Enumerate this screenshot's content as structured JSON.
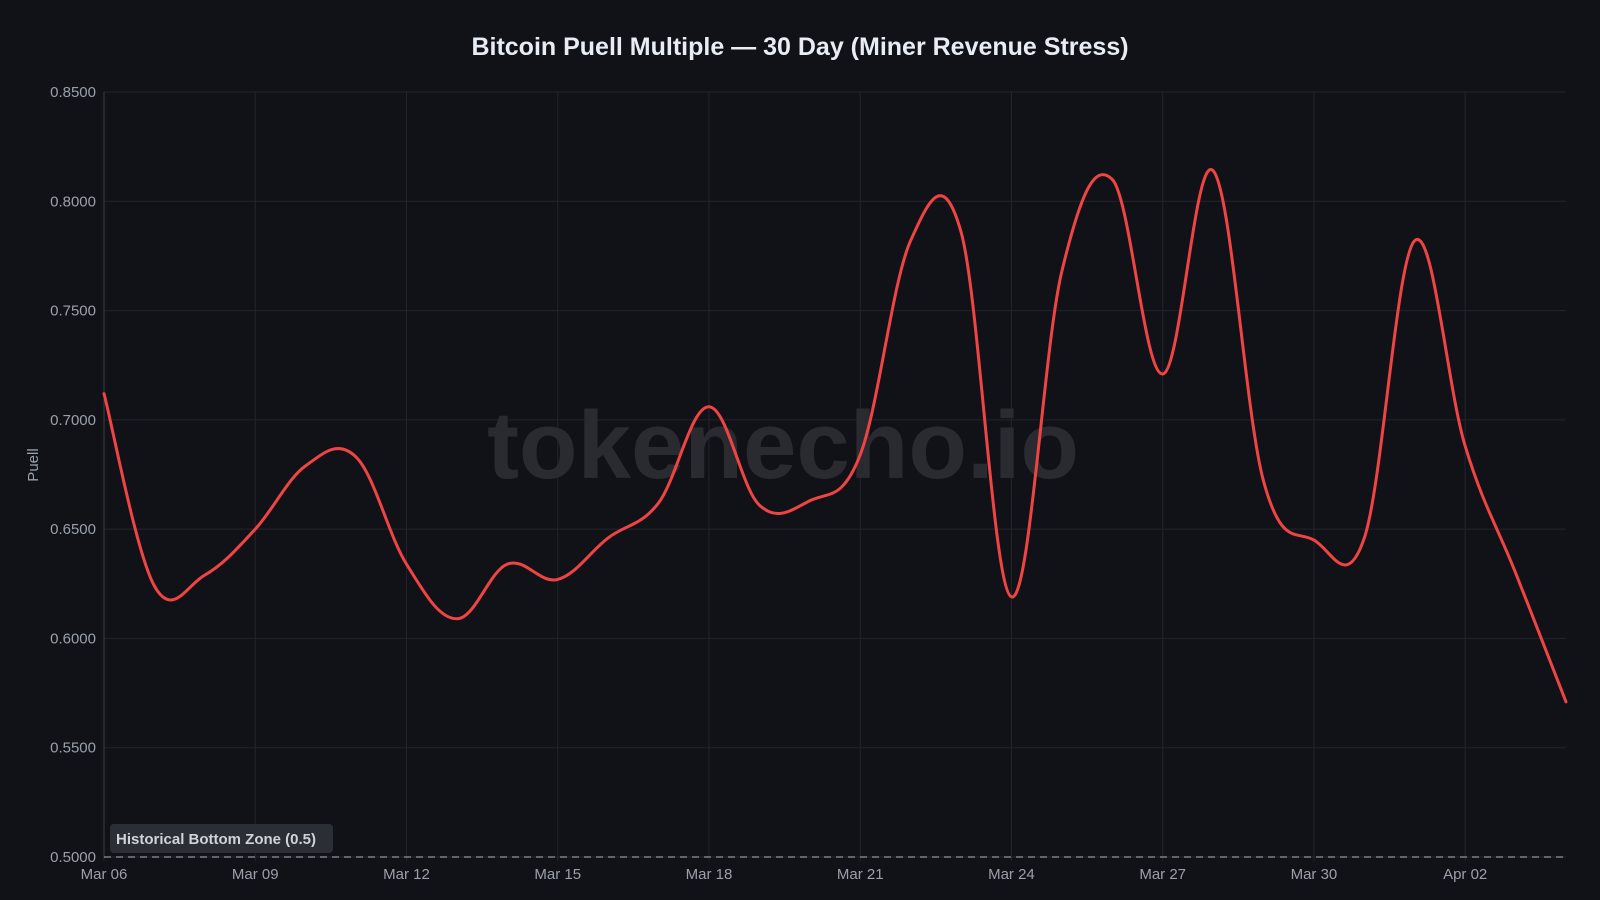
{
  "chart_data": {
    "type": "line",
    "title": "Bitcoin Puell Multiple — 30 Day (Miner Revenue Stress)",
    "xlabel": "",
    "ylabel": "Puell",
    "ylim": [
      0.5,
      0.85
    ],
    "yticks": [
      "0.5000",
      "0.5500",
      "0.6000",
      "0.6500",
      "0.7000",
      "0.7500",
      "0.8000",
      "0.8500"
    ],
    "xtick_labels": [
      "Mar 06",
      "Mar 09",
      "Mar 12",
      "Mar 15",
      "Mar 18",
      "Mar 21",
      "Mar 24",
      "Mar 27",
      "Mar 30",
      "Apr 02"
    ],
    "grid": true,
    "legend": null,
    "x": [
      "Mar 06",
      "Mar 07",
      "Mar 08",
      "Mar 09",
      "Mar 10",
      "Mar 11",
      "Mar 12",
      "Mar 13",
      "Mar 14",
      "Mar 15",
      "Mar 16",
      "Mar 17",
      "Mar 18",
      "Mar 19",
      "Mar 20",
      "Mar 21",
      "Mar 22",
      "Mar 23",
      "Mar 24",
      "Mar 25",
      "Mar 26",
      "Mar 27",
      "Mar 28",
      "Mar 29",
      "Mar 30",
      "Mar 31",
      "Apr 01",
      "Apr 02",
      "Apr 03",
      "Apr 04"
    ],
    "series": [
      {
        "name": "Puell Multiple",
        "color": "#ef4444",
        "values": [
          0.712,
          0.624,
          0.629,
          0.65,
          0.679,
          0.683,
          0.634,
          0.609,
          0.634,
          0.627,
          0.646,
          0.662,
          0.706,
          0.661,
          0.663,
          0.684,
          0.782,
          0.786,
          0.619,
          0.768,
          0.81,
          0.721,
          0.814,
          0.672,
          0.645,
          0.646,
          0.782,
          0.688,
          0.63,
          0.571
        ]
      }
    ],
    "annotations": [
      {
        "type": "hline",
        "y": 0.5,
        "style": "dashed",
        "label": "Historical Bottom Zone (0.5)"
      }
    ],
    "watermark": "tokenecho.io"
  },
  "colors": {
    "background": "#111217",
    "line": "#ef4444",
    "grid": "#23252c",
    "text": "#9aa0ab",
    "title": "#e8ecf4"
  }
}
